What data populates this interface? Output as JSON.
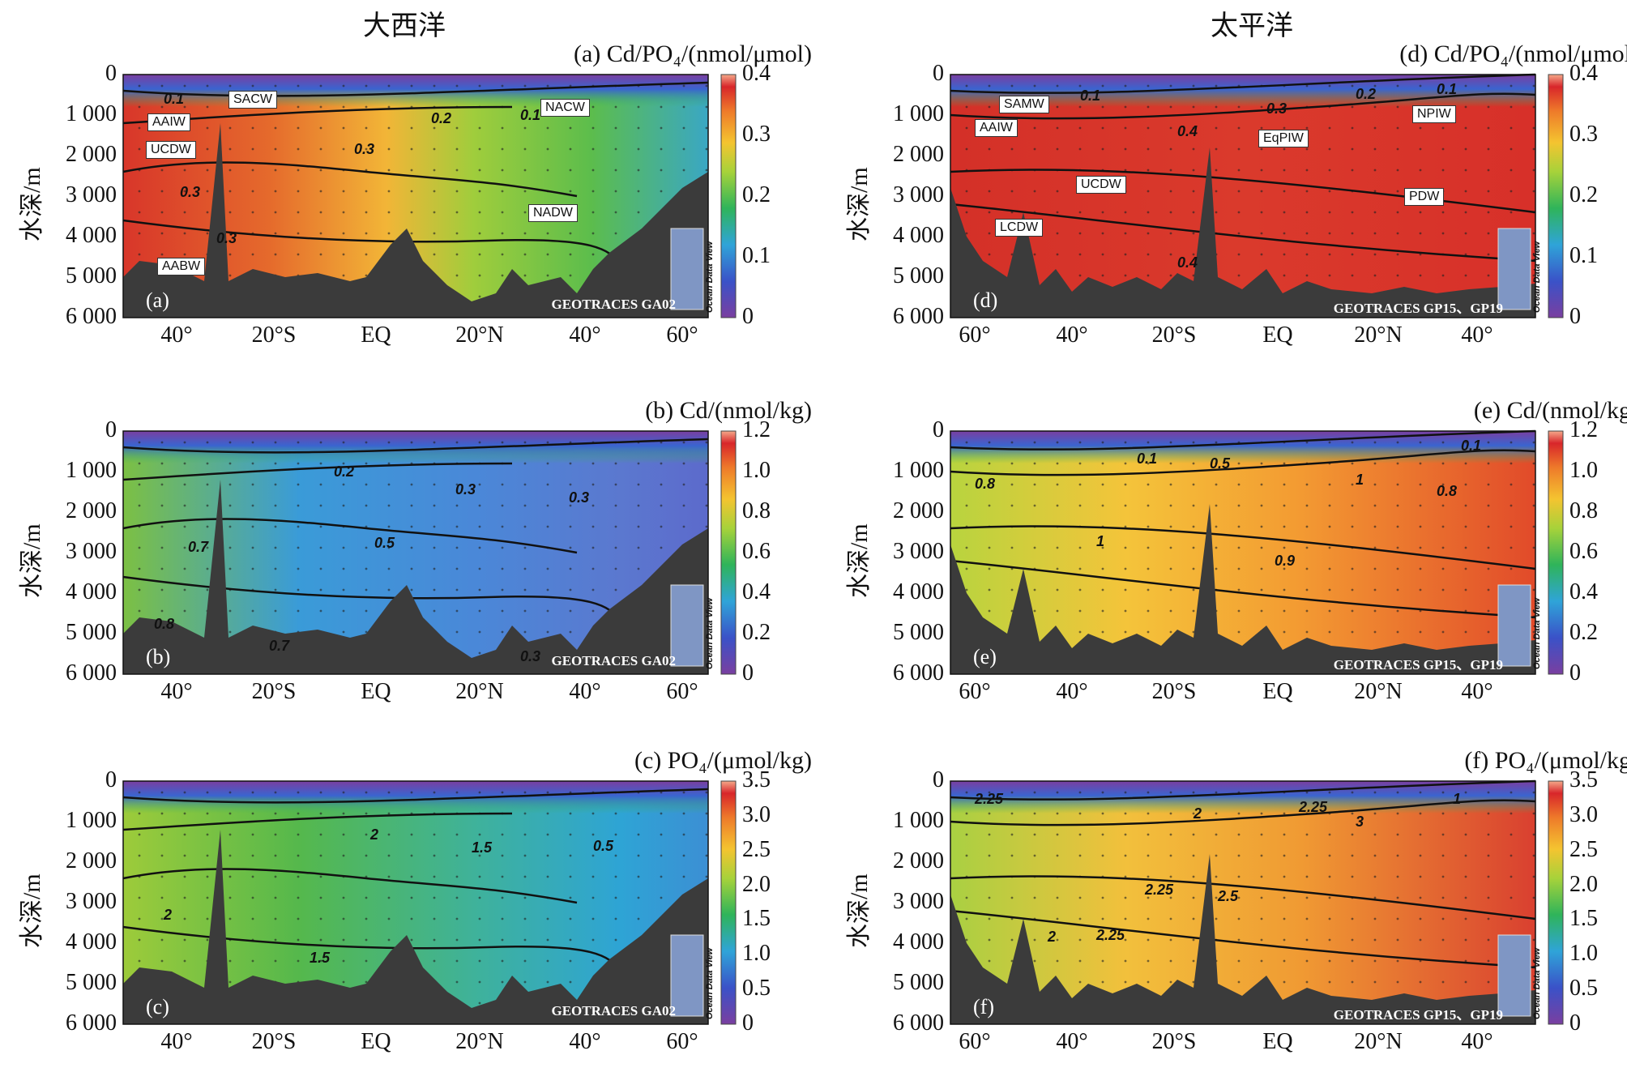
{
  "titles": {
    "atlantic": "大西洋",
    "pacific": "太平洋"
  },
  "ylabel": "水深/m",
  "odv_label": "Ocean Data View",
  "y_ticks": [
    "0",
    "1 000",
    "2 000",
    "3 000",
    "4 000",
    "5 000",
    "6 000"
  ],
  "x_ticks_atlantic": [
    "40°",
    "20°S",
    "EQ",
    "20°N",
    "40°",
    "60°"
  ],
  "x_ticks_pacific": [
    "60°",
    "40°",
    "20°S",
    "EQ",
    "20°N",
    "40°"
  ],
  "chart_data": [
    {
      "id": "a",
      "type": "heatmap",
      "ocean": "atlantic",
      "title": "(a) Cd/PO₄/(nmol/μmol)",
      "letter": "(a)",
      "source": "GEOTRACES GA02",
      "colorbar": {
        "ticks": [
          "0.4",
          "0.3",
          "0.2",
          "0.1",
          "0"
        ],
        "range": [
          0,
          0.4
        ]
      },
      "contours": [
        "0.1",
        "0.2",
        "0.1",
        "0.3",
        "0.3",
        "0.3"
      ],
      "water_masses": [
        "SACW",
        "NACW",
        "AAIW",
        "UCDW",
        "NADW",
        "AABW"
      ]
    },
    {
      "id": "b",
      "type": "heatmap",
      "ocean": "atlantic",
      "title": "(b) Cd/(nmol/kg)",
      "letter": "(b)",
      "source": "GEOTRACES GA02",
      "colorbar": {
        "ticks": [
          "1.2",
          "1.0",
          "0.8",
          "0.6",
          "0.4",
          "0.2",
          "0"
        ],
        "range": [
          0,
          1.2
        ]
      },
      "contours": [
        "0.2",
        "0.3",
        "0.3",
        "0.7",
        "0.5",
        "0.8",
        "0.7",
        "0.3"
      ]
    },
    {
      "id": "c",
      "type": "heatmap",
      "ocean": "atlantic",
      "title": "(c) PO₄/(μmol/kg)",
      "letter": "(c)",
      "source": "GEOTRACES GA02",
      "colorbar": {
        "ticks": [
          "3.5",
          "3.0",
          "2.5",
          "2.0",
          "1.5",
          "1.0",
          "0.5",
          "0"
        ],
        "range": [
          0,
          3.5
        ]
      },
      "contours": [
        "2",
        "1.5",
        "0.5",
        "2",
        "1.5"
      ]
    },
    {
      "id": "d",
      "type": "heatmap",
      "ocean": "pacific",
      "title": "(d) Cd/PO₄/(nmol/μmol)",
      "letter": "(d)",
      "source": "GEOTRACES GP15、GP19",
      "colorbar": {
        "ticks": [
          "0.4",
          "0.3",
          "0.2",
          "0.1",
          "0"
        ],
        "range": [
          0,
          0.4
        ]
      },
      "contours": [
        "0.1",
        "0.2",
        "0.1",
        "0.3",
        "0.4",
        "0.4"
      ],
      "water_masses": [
        "SAMW",
        "NPIW",
        "AAIW",
        "EqPIW",
        "UCDW",
        "PDW",
        "LCDW"
      ]
    },
    {
      "id": "e",
      "type": "heatmap",
      "ocean": "pacific",
      "title": "(e) Cd/(nmol/kg)",
      "letter": "(e)",
      "source": "GEOTRACES GP15、GP19",
      "colorbar": {
        "ticks": [
          "1.2",
          "1.0",
          "0.8",
          "0.6",
          "0.4",
          "0.2",
          "0"
        ],
        "range": [
          0,
          1.2
        ]
      },
      "contours": [
        "0.1",
        "0.5",
        "0.1",
        "0.8",
        "1",
        "1",
        "0.8",
        "0.9"
      ]
    },
    {
      "id": "f",
      "type": "heatmap",
      "ocean": "pacific",
      "title": "(f) PO₄/(μmol/kg)",
      "letter": "(f)",
      "source": "GEOTRACES GP15、GP19",
      "colorbar": {
        "ticks": [
          "3.5",
          "3.0",
          "2.5",
          "2.0",
          "1.5",
          "1.0",
          "0.5",
          "0"
        ],
        "range": [
          0,
          3.5
        ]
      },
      "contours": [
        "1",
        "2.25",
        "2",
        "2.25",
        "3",
        "2.25",
        "2.5",
        "2.25",
        "2"
      ]
    }
  ]
}
